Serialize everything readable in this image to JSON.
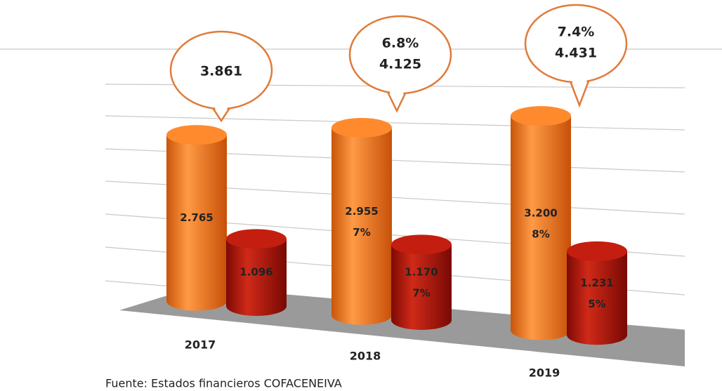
{
  "chart_data": {
    "type": "cylinder-bar",
    "categories": [
      "2017",
      "2018",
      "2019"
    ],
    "series": [
      {
        "color": "#f07a1a",
        "values": [
          2765,
          2955,
          3200
        ],
        "value_labels": [
          "2.765",
          "2.955",
          "3.200"
        ],
        "growth": [
          null,
          7,
          8
        ],
        "growth_labels": [
          null,
          "7%",
          "8%"
        ]
      },
      {
        "color": "#b3140c",
        "values": [
          1096,
          1170,
          1231
        ],
        "value_labels": [
          "1.096",
          "1.170",
          "1.231"
        ],
        "growth": [
          null,
          7,
          5
        ],
        "growth_labels": [
          null,
          "7%",
          "5%"
        ]
      }
    ],
    "totals": [
      3861,
      4125,
      4431
    ],
    "total_labels": [
      "3.861",
      "4.125",
      "4.431"
    ],
    "total_growth": [
      null,
      6.8,
      7.4
    ],
    "total_growth_labels": [
      null,
      "6.8%",
      "7.4%"
    ],
    "ylim": [
      0,
      3500
    ],
    "grid": true,
    "source": "Fuente: Estados financieros COFACENEIVA"
  }
}
